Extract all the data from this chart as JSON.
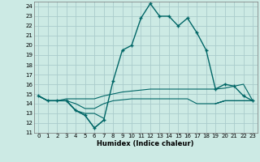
{
  "xlabel": "Humidex (Indice chaleur)",
  "x_values": [
    0,
    1,
    2,
    3,
    4,
    5,
    6,
    7,
    8,
    9,
    10,
    11,
    12,
    13,
    14,
    15,
    16,
    17,
    18,
    19,
    20,
    21,
    22,
    23
  ],
  "humidex": [
    14.8,
    14.3,
    14.3,
    14.3,
    13.3,
    12.8,
    11.5,
    12.3,
    16.3,
    19.5,
    20.0,
    22.8,
    24.3,
    23.0,
    23.0,
    22.0,
    22.8,
    21.3,
    19.5,
    15.5,
    16.0,
    15.8,
    14.8,
    14.3
  ],
  "line_top": [
    14.8,
    14.3,
    14.3,
    14.5,
    14.5,
    14.5,
    14.5,
    14.8,
    15.0,
    15.2,
    15.3,
    15.4,
    15.5,
    15.5,
    15.5,
    15.5,
    15.5,
    15.5,
    15.5,
    15.5,
    15.6,
    15.8,
    16.0,
    14.3
  ],
  "line_bot": [
    14.8,
    14.3,
    14.3,
    14.3,
    14.0,
    13.5,
    13.5,
    14.0,
    14.3,
    14.4,
    14.5,
    14.5,
    14.5,
    14.5,
    14.5,
    14.5,
    14.5,
    14.0,
    14.0,
    14.0,
    14.3,
    14.3,
    14.3,
    14.3
  ],
  "line_mid1": [
    14.8,
    14.3,
    14.3,
    14.3,
    13.3,
    12.8,
    11.5,
    12.3,
    null,
    null,
    null,
    null,
    null,
    null,
    null,
    null,
    null,
    null,
    null,
    14.0,
    14.3,
    14.3,
    14.3,
    14.3
  ],
  "line_mid2": [
    14.8,
    14.3,
    14.3,
    14.3,
    13.3,
    13.0,
    13.0,
    12.5,
    null,
    null,
    null,
    null,
    null,
    null,
    null,
    null,
    null,
    null,
    null,
    14.0,
    14.3,
    14.3,
    14.3,
    14.3
  ],
  "background": "#cceae4",
  "grid_color": "#aacccc",
  "line_color": "#006666",
  "ylim": [
    11,
    24.5
  ],
  "xlim": [
    -0.5,
    23.5
  ],
  "yticks": [
    11,
    12,
    13,
    14,
    15,
    16,
    17,
    18,
    19,
    20,
    21,
    22,
    23,
    24
  ],
  "xticks": [
    0,
    1,
    2,
    3,
    4,
    5,
    6,
    7,
    8,
    9,
    10,
    11,
    12,
    13,
    14,
    15,
    16,
    17,
    18,
    19,
    20,
    21,
    22,
    23
  ],
  "xlabel_fontsize": 6.0,
  "tick_fontsize": 5.0
}
